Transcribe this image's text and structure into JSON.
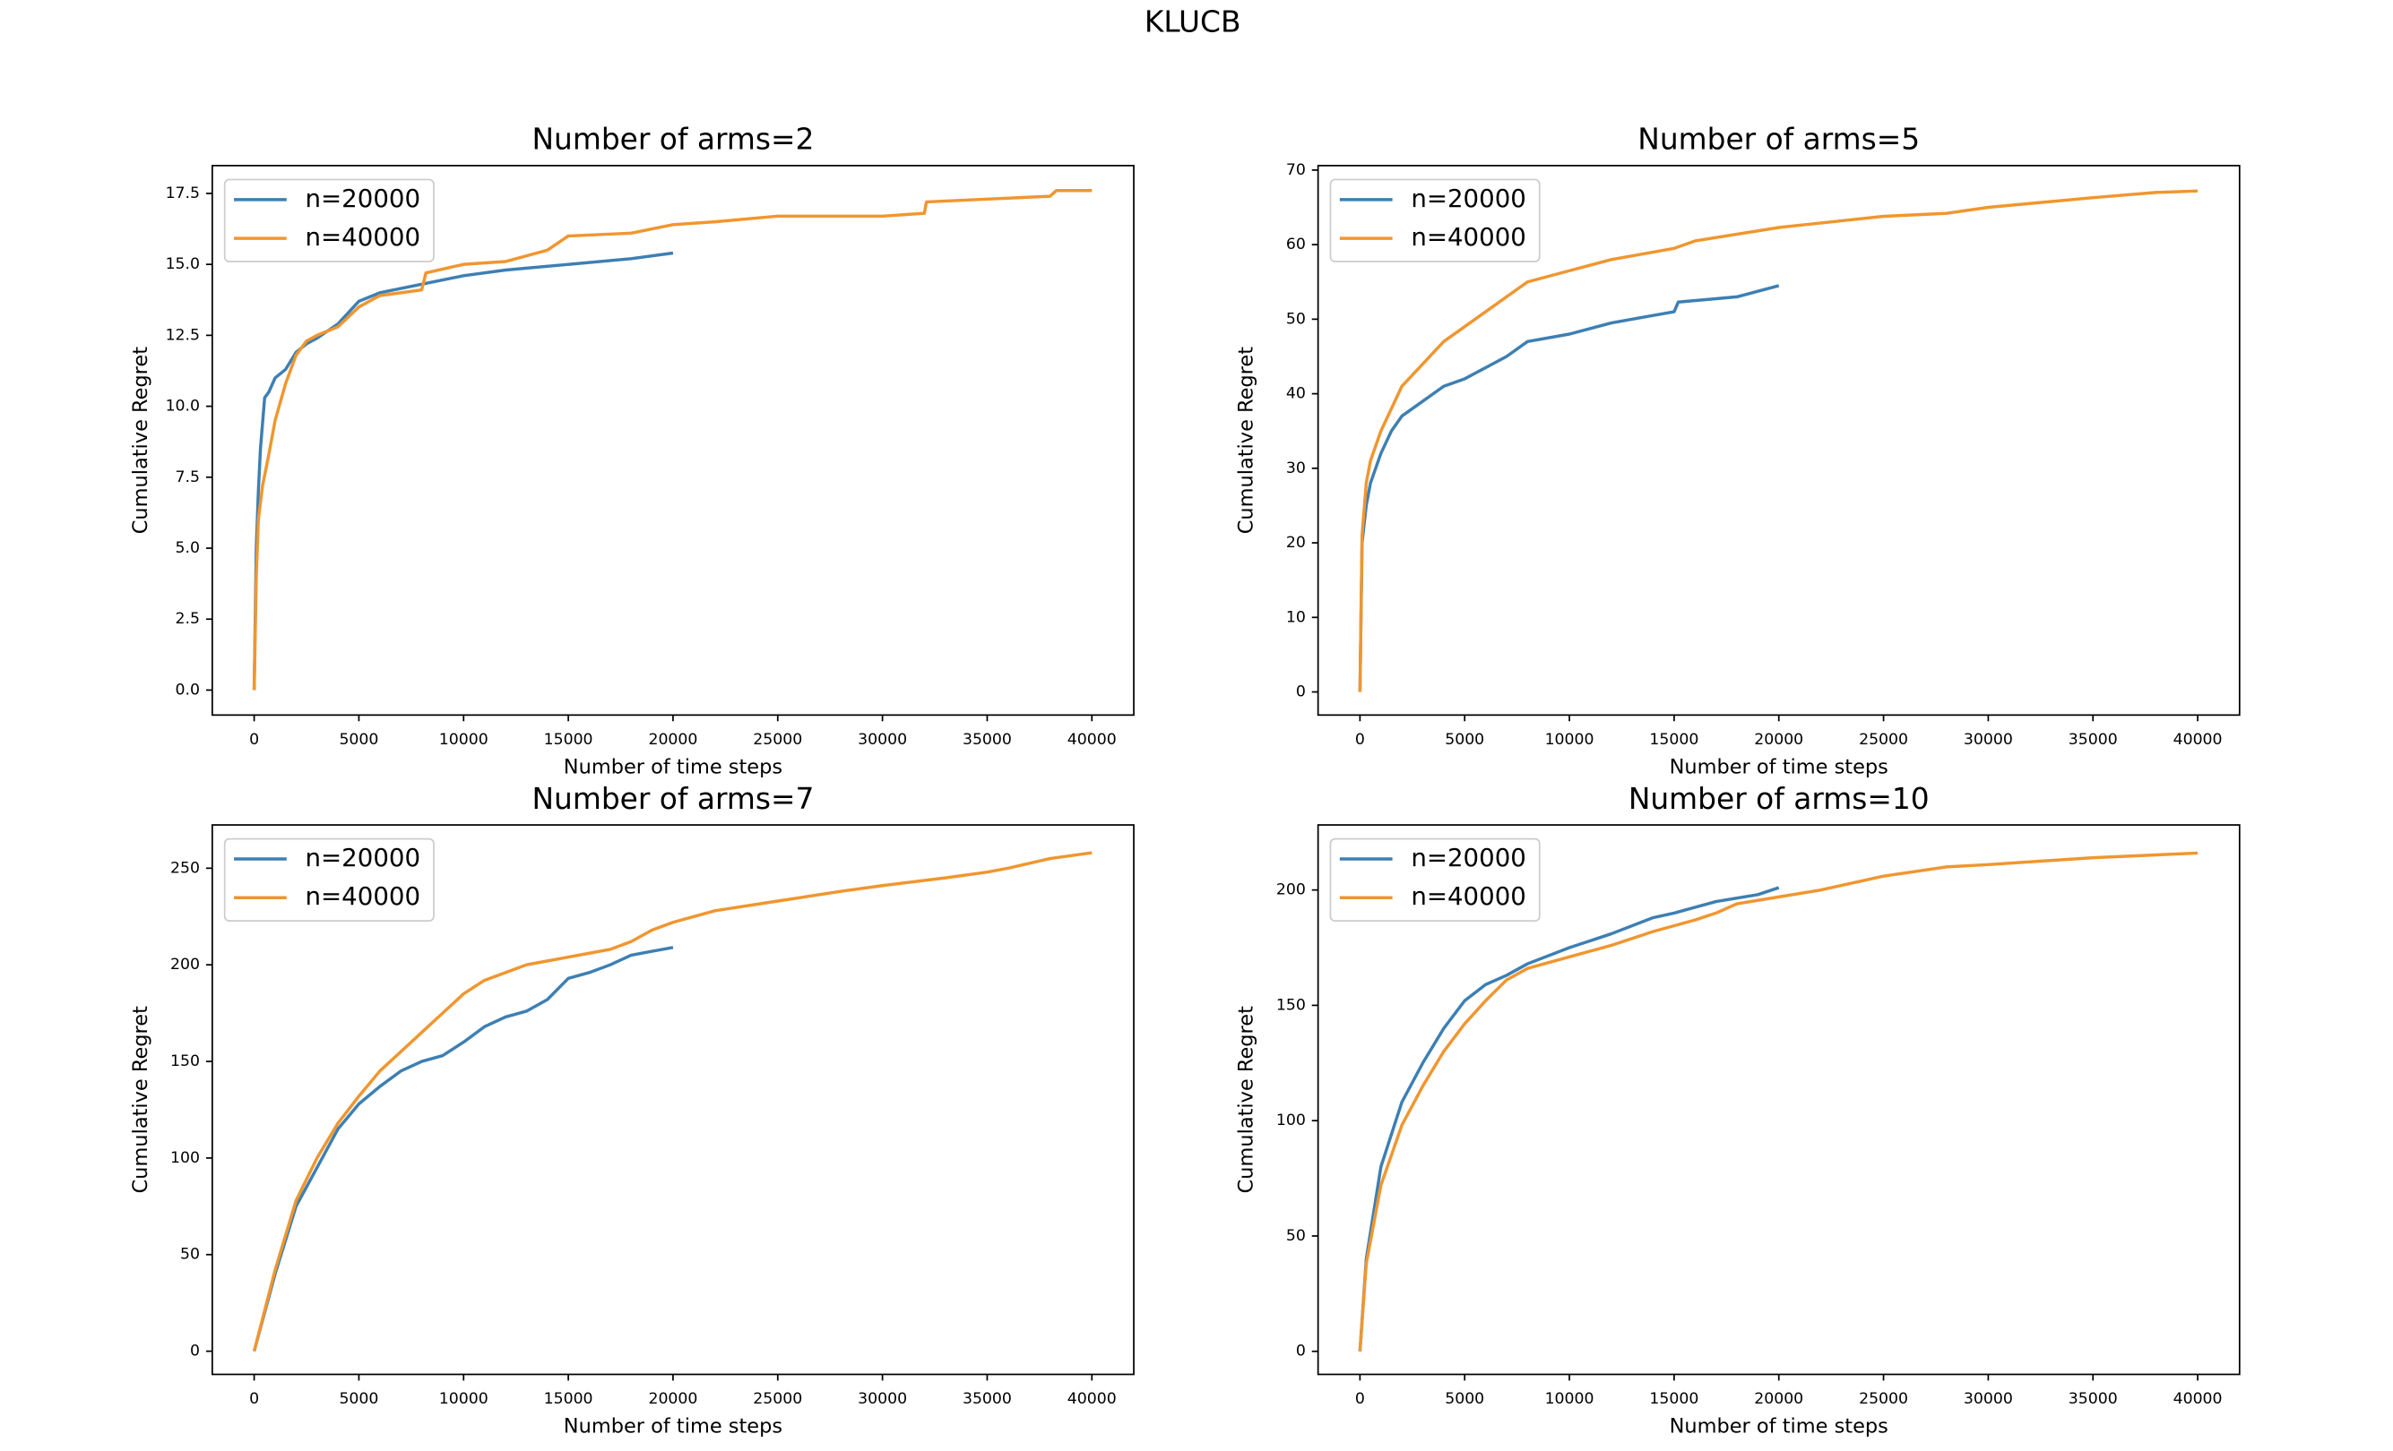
{
  "title": "KLUCB",
  "chart_data": [
    {
      "type": "line",
      "title": "Number of arms=2",
      "xlabel": "Number of time steps",
      "ylabel": "Cumulative Regret",
      "legend": "upper left",
      "xlim": [
        -2000,
        42000
      ],
      "ylim": [
        -0.88,
        18.48
      ],
      "xticks": [
        0,
        5000,
        10000,
        15000,
        20000,
        25000,
        30000,
        35000,
        40000
      ],
      "yticks": [
        {
          "value": 0,
          "label": "0.0"
        },
        2.5,
        {
          "value": 5,
          "label": "5.0"
        },
        7.5,
        {
          "value": 10,
          "label": "10.0"
        },
        12.5,
        {
          "value": 15,
          "label": "15.0"
        },
        17.5
      ],
      "series": [
        {
          "name": "n=20000",
          "color": "#3d7fb3",
          "x": [
            0,
            100,
            200,
            300,
            500,
            700,
            1000,
            1500,
            2000,
            2500,
            3000,
            4000,
            5000,
            6000,
            8000,
            10000,
            12000,
            15000,
            18000,
            20000
          ],
          "values": [
            0,
            5,
            7,
            8.5,
            10.3,
            10.5,
            11,
            11.3,
            11.9,
            12.2,
            12.4,
            12.9,
            13.7,
            14,
            14.3,
            14.6,
            14.8,
            15,
            15.2,
            15.4
          ]
        },
        {
          "name": "n=40000",
          "color": "#f0962f",
          "x": [
            0,
            100,
            200,
            400,
            700,
            1000,
            1500,
            2000,
            2500,
            3000,
            4000,
            5000,
            6000,
            7000,
            8000,
            8200,
            10000,
            12000,
            14000,
            15000,
            18000,
            20000,
            22000,
            25000,
            30000,
            32000,
            32100,
            35000,
            38000,
            38300,
            40000
          ],
          "values": [
            0,
            4,
            6,
            7.2,
            8.3,
            9.5,
            10.8,
            11.8,
            12.3,
            12.5,
            12.8,
            13.5,
            13.9,
            14,
            14.1,
            14.7,
            15,
            15.1,
            15.5,
            16,
            16.1,
            16.4,
            16.5,
            16.7,
            16.7,
            16.8,
            17.2,
            17.3,
            17.4,
            17.6,
            17.6
          ]
        }
      ]
    },
    {
      "type": "line",
      "title": "Number of arms=5",
      "xlabel": "Number of time steps",
      "ylabel": "Cumulative Regret",
      "legend": "upper left",
      "xlim": [
        -2000,
        42000
      ],
      "ylim": [
        -3.1,
        70.6
      ],
      "xticks": [
        0,
        5000,
        10000,
        15000,
        20000,
        25000,
        30000,
        35000,
        40000
      ],
      "yticks": [
        0,
        10,
        20,
        30,
        40,
        50,
        60,
        70
      ],
      "series": [
        {
          "name": "n=20000",
          "color": "#3d7fb3",
          "x": [
            0,
            100,
            300,
            500,
            1000,
            1500,
            2000,
            3000,
            4000,
            5000,
            6000,
            7000,
            8000,
            10000,
            12000,
            14000,
            15000,
            15200,
            18000,
            20000
          ],
          "values": [
            0,
            20,
            25,
            28,
            32,
            35,
            37,
            39,
            41,
            42,
            43.5,
            45,
            47,
            48,
            49.5,
            50.5,
            51,
            52.3,
            53,
            54.5
          ]
        },
        {
          "name": "n=40000",
          "color": "#f0962f",
          "x": [
            0,
            100,
            300,
            500,
            1000,
            1500,
            2000,
            3000,
            4000,
            5000,
            6000,
            7000,
            8000,
            10000,
            12000,
            15000,
            16000,
            20000,
            25000,
            28000,
            30000,
            35000,
            38000,
            40000
          ],
          "values": [
            0,
            21,
            28,
            31,
            35,
            38,
            41,
            44,
            47,
            49,
            51,
            53,
            55,
            56.5,
            58,
            59.5,
            60.5,
            62.3,
            63.8,
            64.2,
            65,
            66.3,
            67,
            67.2
          ]
        }
      ]
    },
    {
      "type": "line",
      "title": "Number of arms=7",
      "xlabel": "Number of time steps",
      "ylabel": "Cumulative Regret",
      "legend": "upper left",
      "xlim": [
        -2000,
        42000
      ],
      "ylim": [
        -12,
        272.4
      ],
      "xticks": [
        0,
        5000,
        10000,
        15000,
        20000,
        25000,
        30000,
        35000,
        40000
      ],
      "yticks": [
        0,
        50,
        100,
        150,
        200,
        250
      ],
      "series": [
        {
          "name": "n=20000",
          "color": "#3d7fb3",
          "x": [
            0,
            1000,
            2000,
            3000,
            4000,
            5000,
            6000,
            7000,
            8000,
            9000,
            10000,
            11000,
            12000,
            13000,
            14000,
            15000,
            16000,
            17000,
            18000,
            19000,
            20000
          ],
          "values": [
            0,
            40,
            75,
            95,
            115,
            128,
            137,
            145,
            150,
            153,
            160,
            168,
            173,
            176,
            182,
            193,
            196,
            200,
            205,
            207,
            209
          ]
        },
        {
          "name": "n=40000",
          "color": "#f0962f",
          "x": [
            0,
            1000,
            2000,
            3000,
            4000,
            5000,
            6000,
            7000,
            8000,
            9000,
            10000,
            11000,
            12000,
            13000,
            14000,
            15000,
            16000,
            17000,
            18000,
            19000,
            20000,
            22000,
            25000,
            28000,
            30000,
            33000,
            35000,
            36000,
            38000,
            40000
          ],
          "values": [
            0,
            42,
            78,
            100,
            118,
            132,
            145,
            155,
            165,
            175,
            185,
            192,
            196,
            200,
            202,
            204,
            206,
            208,
            212,
            218,
            222,
            228,
            233,
            238,
            241,
            245,
            248,
            250,
            255,
            258
          ]
        }
      ]
    },
    {
      "type": "line",
      "title": "Number of arms=10",
      "xlabel": "Number of time steps",
      "ylabel": "Cumulative Regret",
      "legend": "upper left",
      "xlim": [
        -2000,
        42000
      ],
      "ylim": [
        -10,
        228.2
      ],
      "xticks": [
        0,
        5000,
        10000,
        15000,
        20000,
        25000,
        30000,
        35000,
        40000
      ],
      "yticks": [
        0,
        50,
        100,
        150,
        200
      ],
      "series": [
        {
          "name": "n=20000",
          "color": "#3d7fb3",
          "x": [
            0,
            300,
            1000,
            2000,
            3000,
            4000,
            5000,
            6000,
            7000,
            8000,
            10000,
            12000,
            14000,
            15000,
            17000,
            19000,
            20000
          ],
          "values": [
            0,
            40,
            80,
            108,
            125,
            140,
            152,
            159,
            163,
            168,
            175,
            181,
            188,
            190,
            195,
            198,
            201
          ]
        },
        {
          "name": "n=40000",
          "color": "#f0962f",
          "x": [
            0,
            300,
            1000,
            2000,
            3000,
            4000,
            5000,
            6000,
            7000,
            8000,
            10000,
            12000,
            14000,
            16000,
            17000,
            18000,
            20000,
            22000,
            25000,
            28000,
            30000,
            35000,
            40000
          ],
          "values": [
            0,
            38,
            72,
            98,
            115,
            130,
            142,
            152,
            161,
            166,
            171,
            176,
            182,
            187,
            190,
            194,
            197,
            200,
            206,
            210,
            211,
            214,
            216
          ]
        }
      ]
    }
  ]
}
